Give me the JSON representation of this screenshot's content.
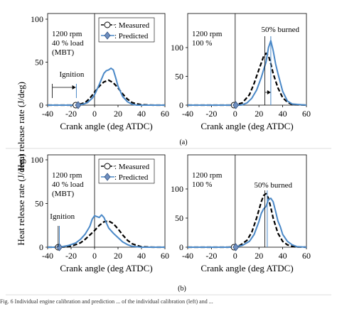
{
  "figure": {
    "ylabel_a": "Heat release rate  (J/deg)",
    "ylabel_b": "Heat release rate  (J/deg.)",
    "caption_a": "(a)",
    "caption_b": "(b)",
    "footer_text": "Fig. 6  Individual engine calibration and prediction ... of the individual calibration (left) and ..."
  },
  "colors": {
    "measured": "#000000",
    "predicted": "#4a88c7",
    "marker_fill": "#6f8fbf",
    "marker_stroke": "#2f4f7f"
  },
  "chart_data": [
    {
      "id": "a-left",
      "type": "line",
      "xlabel": "Crank angle (deg ATDC)",
      "ylabel": "Heat release rate  (J/deg)",
      "xlim": [
        -40,
        60
      ],
      "ylim": [
        0,
        100
      ],
      "xticks": [
        -40,
        -20,
        0,
        20,
        40,
        60
      ],
      "yticks": [
        0,
        50,
        100
      ],
      "conditions": [
        "1200 rpm",
        "40 % load",
        "(MBT)"
      ],
      "legend": {
        "placement": "top-right",
        "measured": ": Measured",
        "predicted": ": Predicted"
      },
      "annotation": "Ignition",
      "ignition_measured": -16,
      "ignition_predicted": -14,
      "series": [
        {
          "name": "Measured",
          "style": "dashed",
          "x": [
            -40,
            -20,
            -14,
            -8,
            -4,
            0,
            4,
            8,
            12,
            16,
            20,
            24,
            28,
            32,
            36,
            40,
            50,
            60
          ],
          "y": [
            0,
            0,
            0.5,
            3,
            8,
            15,
            22,
            27,
            29,
            26,
            20,
            13,
            7,
            3,
            1.5,
            0.5,
            0,
            0
          ]
        },
        {
          "name": "Predicted",
          "style": "solid",
          "x": [
            -40,
            -16,
            -14,
            -10,
            -6,
            -2,
            0,
            4,
            8,
            10,
            12,
            14,
            16,
            18,
            20,
            24,
            28,
            32,
            36,
            60
          ],
          "y": [
            0,
            0,
            0.2,
            1,
            3,
            8,
            12,
            24,
            37,
            40,
            41,
            43,
            41,
            32,
            22,
            10,
            4,
            1,
            0,
            0
          ]
        }
      ]
    },
    {
      "id": "a-right",
      "type": "line",
      "xlabel": "Crank angle (deg ATDC)",
      "ylabel": "",
      "xlim": [
        -40,
        60
      ],
      "ylim": [
        0,
        125
      ],
      "xticks": [
        -40,
        -20,
        0,
        20,
        40,
        60
      ],
      "yticks": [
        0,
        50,
        100
      ],
      "conditions": [
        "1200 rpm",
        "100 %"
      ],
      "annotation": "50% burned",
      "burned_50_measured": 25,
      "burned_50_predicted": 30,
      "series": [
        {
          "name": "Measured",
          "style": "dashed",
          "x": [
            -40,
            -2,
            0,
            6,
            12,
            16,
            20,
            24,
            26,
            28,
            30,
            32,
            36,
            40,
            44,
            48,
            60
          ],
          "y": [
            0,
            0,
            0.3,
            4,
            18,
            38,
            62,
            85,
            90,
            86,
            72,
            55,
            30,
            13,
            5,
            1,
            0
          ]
        },
        {
          "name": "Predicted",
          "style": "solid",
          "x": [
            -40,
            4,
            6,
            10,
            14,
            18,
            22,
            24,
            26,
            28,
            30,
            32,
            34,
            36,
            40,
            44,
            48,
            60
          ],
          "y": [
            0,
            0,
            0.5,
            4,
            12,
            26,
            48,
            62,
            75,
            100,
            112,
            95,
            72,
            55,
            24,
            7,
            2,
            0
          ]
        }
      ]
    },
    {
      "id": "b-left",
      "type": "line",
      "xlabel": "Crank angle (deg ATDC)",
      "ylabel": "Heat release rate  (J/deg.)",
      "xlim": [
        -40,
        60
      ],
      "ylim": [
        0,
        100
      ],
      "xticks": [
        -40,
        -20,
        0,
        20,
        40,
        60
      ],
      "yticks": [
        0,
        50,
        100
      ],
      "conditions": [
        "1200 rpm",
        "40 % load",
        "(MBT)"
      ],
      "legend": {
        "placement": "top-right",
        "measured": ": Measured",
        "predicted": ": Predicted"
      },
      "annotation": "Ignition",
      "ignition_measured": -31,
      "ignition_predicted": -30,
      "series": [
        {
          "name": "Measured",
          "style": "dashed",
          "x": [
            -40,
            -30,
            -24,
            -18,
            -12,
            -8,
            -4,
            0,
            4,
            8,
            12,
            16,
            20,
            24,
            28,
            32,
            36,
            40,
            50,
            60
          ],
          "y": [
            0,
            0,
            0.5,
            2,
            5,
            9,
            14,
            19,
            25,
            29,
            30,
            27,
            21,
            14,
            8,
            4,
            2,
            0.5,
            0,
            0
          ]
        },
        {
          "name": "Predicted",
          "style": "solid",
          "x": [
            -40,
            -31,
            -28,
            -22,
            -16,
            -12,
            -8,
            -4,
            -2,
            0,
            2,
            4,
            6,
            8,
            10,
            12,
            16,
            20,
            24,
            28,
            32,
            40,
            60
          ],
          "y": [
            0,
            0,
            0.5,
            2,
            5,
            9,
            15,
            24,
            32,
            36,
            35,
            34,
            37,
            34,
            28,
            22,
            16,
            11,
            6,
            3,
            1,
            0,
            0
          ]
        }
      ]
    },
    {
      "id": "b-right",
      "type": "line",
      "xlabel": "Crank angle (deg ATDC)",
      "ylabel": "",
      "xlim": [
        -40,
        60
      ],
      "ylim": [
        0,
        125
      ],
      "xticks": [
        -40,
        -20,
        0,
        20,
        40,
        60
      ],
      "yticks": [
        0,
        50,
        100
      ],
      "conditions": [
        "1200 rpm",
        "100 %"
      ],
      "annotation": "50% burned",
      "burned_50_measured": 25,
      "burned_50_predicted": 27,
      "series": [
        {
          "name": "Measured",
          "style": "dashed",
          "x": [
            -40,
            -6,
            -2,
            4,
            10,
            14,
            18,
            22,
            24,
            26,
            28,
            30,
            32,
            36,
            40,
            44,
            48,
            52,
            60
          ],
          "y": [
            0,
            0,
            0.5,
            3,
            12,
            26,
            50,
            78,
            89,
            92,
            84,
            68,
            50,
            24,
            10,
            4,
            1.5,
            0.5,
            0
          ]
        },
        {
          "name": "Predicted",
          "style": "solid",
          "x": [
            -40,
            -4,
            0,
            6,
            12,
            16,
            20,
            22,
            24,
            26,
            28,
            30,
            32,
            34,
            36,
            38,
            40,
            44,
            48,
            52,
            60
          ],
          "y": [
            0,
            0,
            0.5,
            3,
            10,
            22,
            44,
            58,
            66,
            70,
            82,
            84,
            78,
            62,
            45,
            35,
            22,
            10,
            4,
            1,
            0
          ]
        }
      ]
    }
  ]
}
